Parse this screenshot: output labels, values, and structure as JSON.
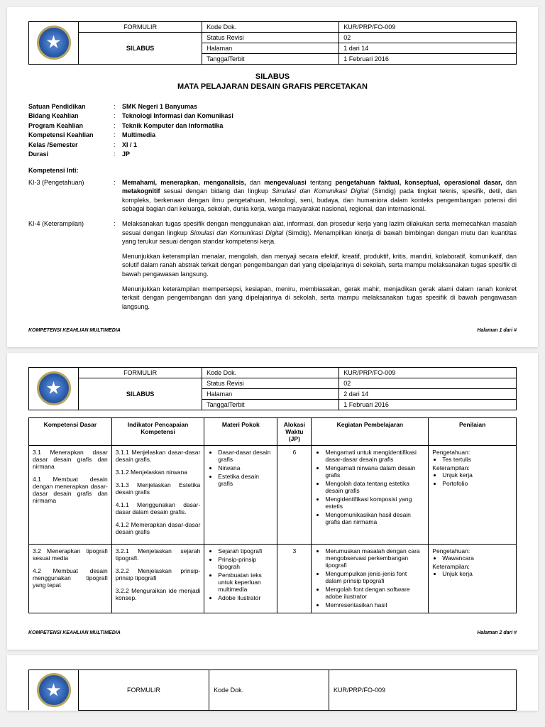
{
  "header": {
    "formulir": "FORMULIR",
    "silabus": "SILABUS",
    "kode_label": "Kode Dok.",
    "kode_val": "KUR/PRP/FO-009",
    "status_label": "Status Revisi",
    "status_val": "02",
    "halaman_label": "Halaman",
    "halaman_val_p1": "1 dari 14",
    "halaman_val_p2": "2 dari 14",
    "tanggal_label": "TanggalTerbit",
    "tanggal_val": "1 Februari 2016"
  },
  "title_line1": "SILABUS",
  "title_line2": "MATA PELAJARAN DESAIN GRAFIS PERCETAKAN",
  "info": {
    "satuan_l": "Satuan Pendidikan",
    "satuan_v": "SMK Negeri 1 Banyumas",
    "bidang_l": "Bidang Keahlian",
    "bidang_v": "Teknologi Informasi dan Komunikasi",
    "program_l": "Program Keahlian",
    "program_v": "Teknik Komputer dan Informatika",
    "komp_l": "Kompetensi Keahlian",
    "komp_v": "Multimedia",
    "kelas_l": "Kelas /Semester",
    "kelas_v": "XI / 1",
    "durasi_l": "Durasi",
    "durasi_v": "JP"
  },
  "ki_heading": "Kompetensi Inti:",
  "ki3_label": "KI-3 (Pengetahuan)",
  "ki3_text": "<b>Memahami, menerapkan, menganalisis,</b> dan <b>mengevaluasi</b> tentang <b>pengetahuan faktual, konseptual, operasional dasar,</b> dan <b>metakognitif</b> sesuai dengan bidang dan lingkup <i>Simulasi dan Komunikasi Digital</i> (Simdig) pada tingkat teknis, spesifik, detil, dan kompleks, berkenaan dengan ilmu pengetahuan, teknologi, seni, budaya, dan humaniora dalam konteks pengembangan potensi diri sebagai bagian dari keluarga, sekolah, dunia kerja, warga masyarakat nasional, regional, dan internasional.",
  "ki4_label": "KI-4 (Keterampilan)",
  "ki4_text": "Melaksanakan tugas spesifik dengan menggunakan alat, informasi, dan prosedur kerja yang lazim dilakukan serta memecahkan masalah sesuai dengan lingkup <i>Simulasi dan Komunikasi Digital</i> (Simdig). Menampilkan kinerja di bawah bimbingan dengan mutu dan kuantitas yang terukur sesuai dengan standar kompetensi kerja.",
  "ki4_p2": "Menunjukkan keterampilan menalar, mengolah, dan menyaji secara efektif, kreatif, produktif, kritis, mandiri, kolaboratif, komunikatif, dan solutif dalam ranah abstrak terkait dengan pengembangan dari yang dipelajarinya di sekolah, serta mampu melaksanakan tugas spesifik di bawah pengawasan langsung.",
  "ki4_p3": "Menunjukkan keterampilan mempersepsi, kesiapan, meniru, membiasakan, gerak mahir, menjadikan gerak alami dalam ranah konkret terkait dengan pengembangan dari yang dipelajarinya di sekolah, serta mampu melaksanakan tugas spesifik di bawah pengawasan langsung.",
  "footer_left": "KOMPETENSI KEAHLIAN MULTIMEDIA",
  "footer_right_p1": "Halaman 1 dari #",
  "footer_right_p2": "Halaman 2 dari #",
  "table": {
    "h1": "Kompetensi Dasar",
    "h2": "Indikator Pencapaian Kompetensi",
    "h3": "Materi Pokok",
    "h4": "Alokasi Waktu (JP)",
    "h5": "Kegiatan Pembelajaran",
    "h6": "Penilaian",
    "row1": {
      "kd1": "3.1 Menerapkan dasar dasar desain grafis dan nirmana",
      "kd2": "4.1 Membuat desain dengan menerapkan dasar-dasar desain grafis dan nirmama",
      "ipk": [
        "3.1.1 Menjelaskan dasar-dasar desain grafis.",
        "3.1.2 Menjelaskan nirwana",
        "3.1.3 Menjelaskan Estetika desain grafis",
        "4.1.1 Menggunakan dasar-dasar dalam desain grafis.",
        "4.1.2 Memerapkan dasar-dasar desain grafis"
      ],
      "mp": [
        "Dasar-dasar desain grafis",
        "Nirwana",
        "Estetika desain grafis"
      ],
      "aw": "6",
      "kp": [
        "Mengamati untuk mengidentifikasi dasar-dasar desain grafis",
        "Mengamati nirwana dalam desain grafis",
        "Mengolah data tentang estetika desain grafis",
        "Mengidentifikasi komposisi yang estetis",
        "Mengomunikasikan hasil desain grafis dan nirmama"
      ],
      "pen_p": "Pengetahuan:",
      "pen_p_items": [
        "Tes tertulis"
      ],
      "pen_k": "Keterampilan:",
      "pen_k_items": [
        "Unjuk kerja",
        "Portofolio"
      ]
    },
    "row2": {
      "kd1": "3.2 Menerapkan tipografi sesuai media",
      "kd2": "4.2 Membuat desain menggunakan tipografi yang tepat",
      "ipk": [
        "3.2.1 Menjelaskan sejarah tipografi.",
        "3.2.2 Menjelaskan prinsip-prinsip tipografi",
        "3.2.2 Menguraikan ide menjadi konsep."
      ],
      "mp": [
        "Sejarah tipografi",
        "Prinsip-prinsip tipograh",
        "Pembuatan teks untuk keperluan multimedia",
        "Adobe Ilustrator"
      ],
      "aw": "3",
      "kp": [
        "Merumuskan masalah dengan cara mengobservasi perkembangan tipografi",
        "Mengumpulkan jenis-jenis font dalam prinsip tipografi",
        "Mengolah font dengan software adobe ilustrator",
        "Memresentasikan hasil"
      ],
      "pen_p": "Pengetahuan:",
      "pen_p_items": [
        "Wawancara"
      ],
      "pen_k": "Keterampilan:",
      "pen_k_items": [
        "Unjuk kerja"
      ]
    }
  },
  "colors": {
    "border": "#000000",
    "page_bg": "#ffffff",
    "body_bg": "#f0f0f0",
    "logo_outer": "#b8a560",
    "logo_inner": "#2a5ba8"
  }
}
